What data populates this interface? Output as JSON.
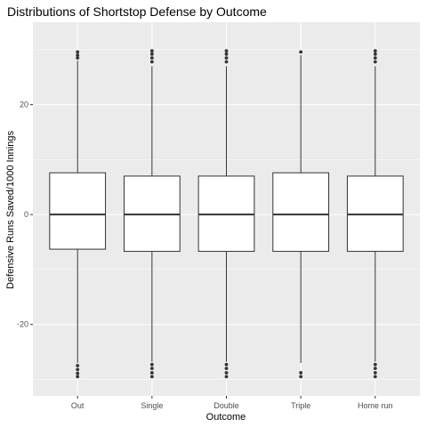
{
  "chart_data": {
    "type": "boxplot",
    "title": "Distributions of Shortstop Defense by Outcome",
    "xlabel": "Outcome",
    "ylabel": "Defensive Runs Saved/1000 Innings",
    "ylim": [
      -33,
      35
    ],
    "yticks": [
      -20,
      0,
      20
    ],
    "grid": true,
    "legend": "none",
    "categories": [
      "Out",
      "Single",
      "Double",
      "Triple",
      "Home run"
    ],
    "boxes": [
      {
        "q1": -6.3,
        "median": 0,
        "q3": 7.6,
        "whisker_low": -27.0,
        "whisker_high": 28.0,
        "outliers": [
          -27.5,
          -28.2,
          -28.9,
          -29.5,
          28.5,
          29.0,
          29.6
        ]
      },
      {
        "q1": -6.7,
        "median": 0,
        "q3": 7.0,
        "whisker_low": -26.8,
        "whisker_high": 27.0,
        "outliers": [
          -27.3,
          -28.0,
          -28.8,
          -29.5,
          27.8,
          28.5,
          29.2,
          29.8
        ]
      },
      {
        "q1": -6.7,
        "median": 0,
        "q3": 7.0,
        "whisker_low": -26.8,
        "whisker_high": 27.0,
        "outliers": [
          -27.3,
          -28.0,
          -28.8,
          -29.5,
          27.8,
          28.5,
          29.2,
          29.8
        ]
      },
      {
        "q1": -6.7,
        "median": 0,
        "q3": 7.6,
        "whisker_low": -27.0,
        "whisker_high": 29.0,
        "outliers": [
          -28.8,
          -29.5,
          29.6
        ]
      },
      {
        "q1": -6.7,
        "median": 0,
        "q3": 7.0,
        "whisker_low": -26.8,
        "whisker_high": 27.0,
        "outliers": [
          -27.3,
          -28.0,
          -28.8,
          -29.5,
          27.8,
          28.5,
          29.2,
          29.8
        ]
      }
    ],
    "colors": {
      "panel": "#ebebeb",
      "grid_major": "#ffffff",
      "box_fill": "#ffffff",
      "box_stroke": "#333333"
    }
  }
}
